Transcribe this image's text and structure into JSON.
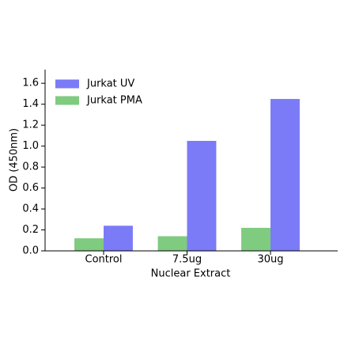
{
  "chart_data": {
    "type": "bar",
    "x_label": "Nuclear Extract",
    "y_label": "OD (450nm)",
    "categories": [
      "Control",
      "7.5ug",
      "30ug"
    ],
    "series": [
      {
        "name": "Jurkat UV",
        "color": "#7b7bf7",
        "values": [
          0.24,
          1.05,
          1.45
        ]
      },
      {
        "name": "Jurkat PMA",
        "color": "#7fcb7f",
        "values": [
          0.12,
          0.14,
          0.22
        ]
      }
    ],
    "ylim": [
      0,
      1.73
    ],
    "yticks": [
      {
        "value": 0,
        "label": "0.0"
      },
      0.2,
      0.4,
      0.6,
      0.8,
      {
        "value": 1,
        "label": "1.0"
      },
      1.2,
      1.4,
      1.6
    ],
    "legend": "upper-left"
  }
}
